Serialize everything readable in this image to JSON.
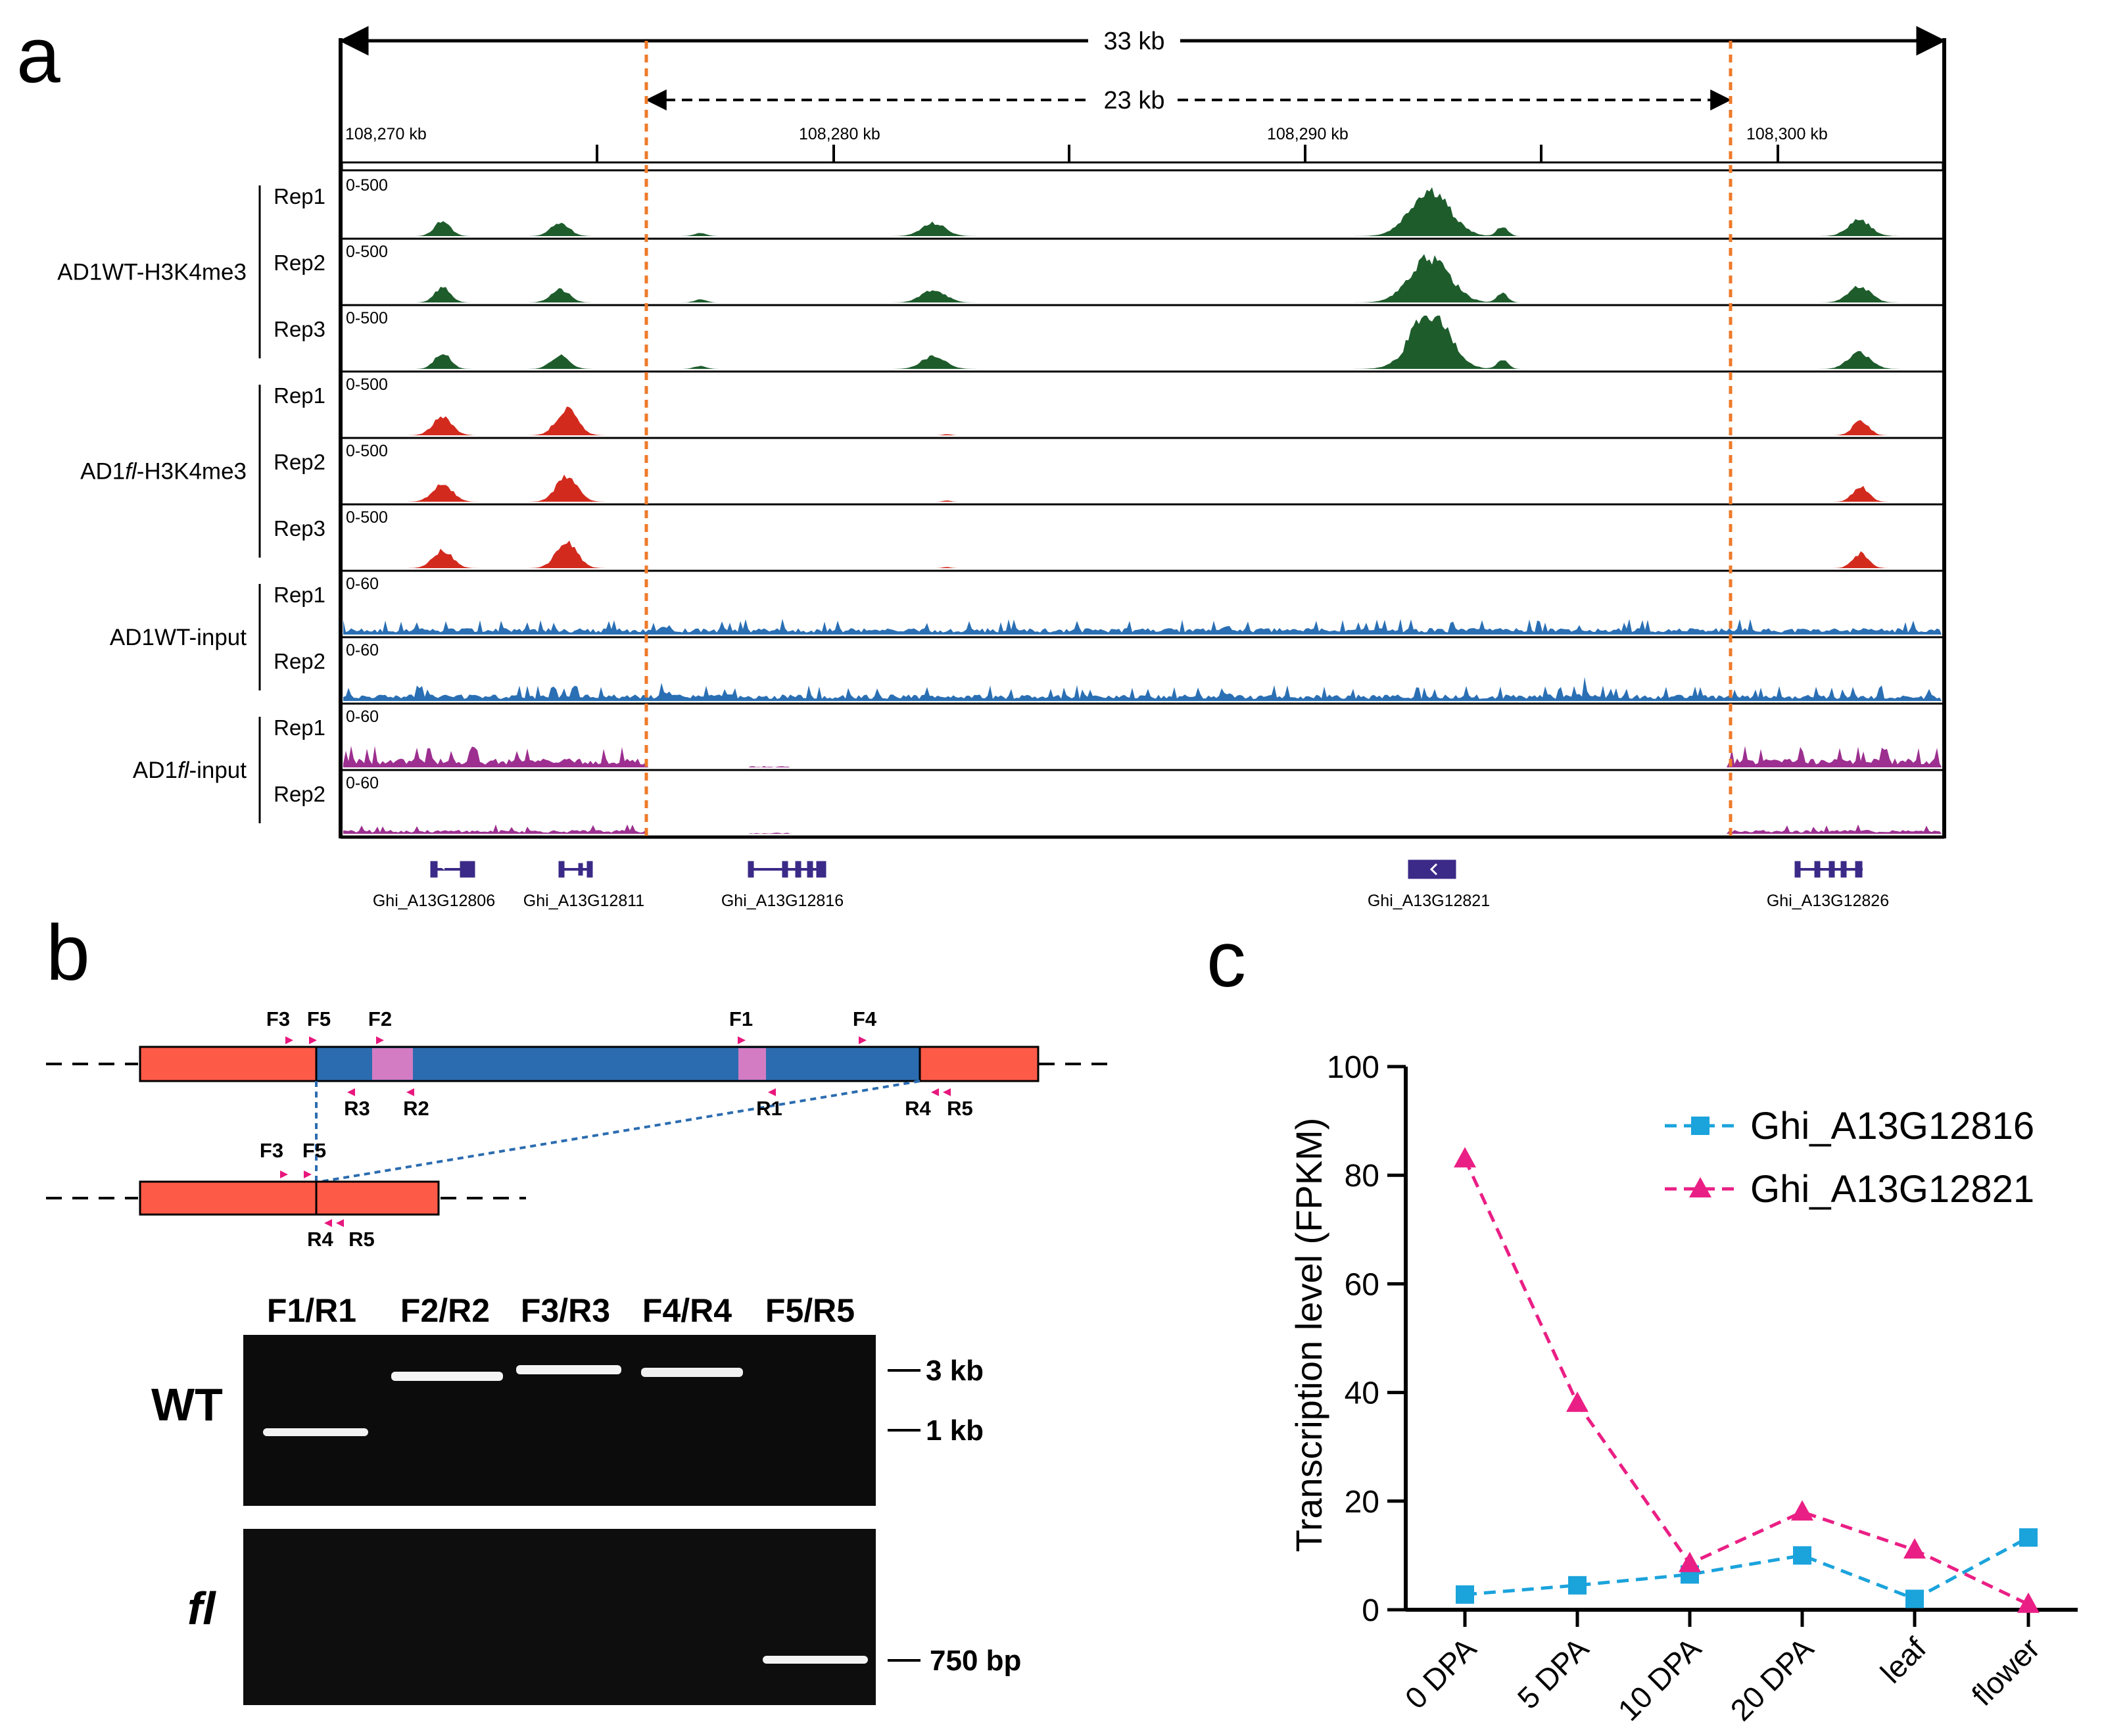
{
  "panel_a": {
    "label": "a",
    "span_total": "33 kb",
    "span_deleted": "23 kb",
    "coords": [
      "108,270 kb",
      "108,280 kb",
      "108,290 kb",
      "108,300 kb"
    ],
    "groups": [
      {
        "name": "AD1WT-H3K4me3",
        "reps": [
          "Rep1",
          "Rep2",
          "Rep3"
        ],
        "scale": "0-500",
        "color": "#1e5c2c"
      },
      {
        "name_prefix": "AD1",
        "name_italic": "fl",
        "name_suffix": "-H3K4me3",
        "reps": [
          "Rep1",
          "Rep2",
          "Rep3"
        ],
        "scale": "0-500",
        "color": "#d22b1e"
      },
      {
        "name": "AD1WT-input",
        "reps": [
          "Rep1",
          "Rep2"
        ],
        "scale": "0-60",
        "color": "#2a6fb4"
      },
      {
        "name_prefix": "AD1",
        "name_italic": "fl",
        "name_suffix": "-input",
        "reps": [
          "Rep1",
          "Rep2"
        ],
        "scale": "0-60",
        "color": "#9c2f8f"
      }
    ],
    "genes": [
      "Ghi_A13G12806",
      "Ghi_A13G12811",
      "Ghi_A13G12816",
      "Ghi_A13G12821",
      "Ghi_A13G12826"
    ]
  },
  "panel_b": {
    "label": "b",
    "top_primers": [
      "F3",
      "F5",
      "F2",
      "F1",
      "F4",
      "R3",
      "R2",
      "R1",
      "R4",
      "R5"
    ],
    "bottom_primers": [
      "F3",
      "F5",
      "R4",
      "R5"
    ],
    "lanes": [
      "F1/R1",
      "F2/R2",
      "F3/R3",
      "F4/R4",
      "F5/R5"
    ],
    "row_labels": [
      "WT"
    ],
    "row_label_italic": "fl",
    "markers": [
      "3 kb",
      "1 kb",
      "750 bp"
    ]
  },
  "panel_c": {
    "label": "c",
    "colors": {
      "s1": "#1ba3dc",
      "s2": "#ea1f85"
    }
  },
  "chart_data": {
    "type": "line",
    "title": "",
    "xlabel": "",
    "ylabel": "Transcription level (FPKM)",
    "categories": [
      "0 DPA",
      "5 DPA",
      "10 DPA",
      "20 DPA",
      "leaf",
      "flower"
    ],
    "ylim": [
      0,
      100
    ],
    "yticks": [
      "0",
      "20",
      "40",
      "60",
      "80",
      "100"
    ],
    "legend": "top-right",
    "series": [
      {
        "name": "Ghi_A13G12816",
        "marker": "square",
        "values": [
          2.8,
          4.5,
          6.5,
          10,
          2,
          13.3
        ]
      },
      {
        "name": "Ghi_A13G12821",
        "marker": "triangle",
        "values": [
          83,
          38,
          8.5,
          18,
          11,
          1
        ]
      }
    ]
  }
}
